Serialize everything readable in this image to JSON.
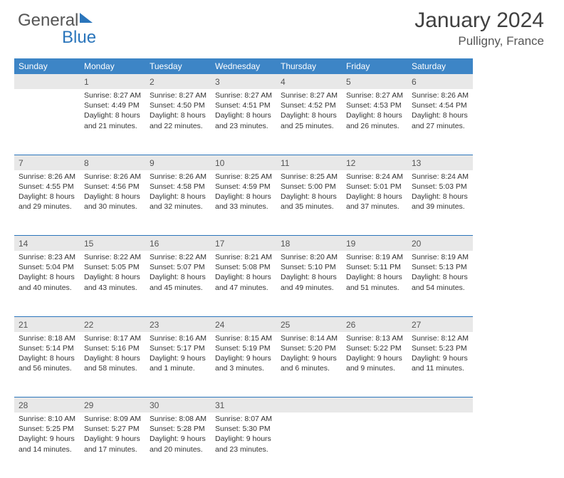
{
  "logo": {
    "part1": "General",
    "part2": "Blue"
  },
  "title": {
    "monthYear": "January 2024",
    "location": "Pulligny, France"
  },
  "colors": {
    "headerBg": "#3d85c6",
    "headerText": "#ffffff",
    "dayNumBg": "#e8e8e8",
    "rule": "#2a75bb",
    "text": "#333333"
  },
  "dayHeaders": [
    "Sunday",
    "Monday",
    "Tuesday",
    "Wednesday",
    "Thursday",
    "Friday",
    "Saturday"
  ],
  "weeks": [
    [
      null,
      {
        "n": "1",
        "sr": "Sunrise: 8:27 AM",
        "ss": "Sunset: 4:49 PM",
        "d1": "Daylight: 8 hours",
        "d2": "and 21 minutes."
      },
      {
        "n": "2",
        "sr": "Sunrise: 8:27 AM",
        "ss": "Sunset: 4:50 PM",
        "d1": "Daylight: 8 hours",
        "d2": "and 22 minutes."
      },
      {
        "n": "3",
        "sr": "Sunrise: 8:27 AM",
        "ss": "Sunset: 4:51 PM",
        "d1": "Daylight: 8 hours",
        "d2": "and 23 minutes."
      },
      {
        "n": "4",
        "sr": "Sunrise: 8:27 AM",
        "ss": "Sunset: 4:52 PM",
        "d1": "Daylight: 8 hours",
        "d2": "and 25 minutes."
      },
      {
        "n": "5",
        "sr": "Sunrise: 8:27 AM",
        "ss": "Sunset: 4:53 PM",
        "d1": "Daylight: 8 hours",
        "d2": "and 26 minutes."
      },
      {
        "n": "6",
        "sr": "Sunrise: 8:26 AM",
        "ss": "Sunset: 4:54 PM",
        "d1": "Daylight: 8 hours",
        "d2": "and 27 minutes."
      }
    ],
    [
      {
        "n": "7",
        "sr": "Sunrise: 8:26 AM",
        "ss": "Sunset: 4:55 PM",
        "d1": "Daylight: 8 hours",
        "d2": "and 29 minutes."
      },
      {
        "n": "8",
        "sr": "Sunrise: 8:26 AM",
        "ss": "Sunset: 4:56 PM",
        "d1": "Daylight: 8 hours",
        "d2": "and 30 minutes."
      },
      {
        "n": "9",
        "sr": "Sunrise: 8:26 AM",
        "ss": "Sunset: 4:58 PM",
        "d1": "Daylight: 8 hours",
        "d2": "and 32 minutes."
      },
      {
        "n": "10",
        "sr": "Sunrise: 8:25 AM",
        "ss": "Sunset: 4:59 PM",
        "d1": "Daylight: 8 hours",
        "d2": "and 33 minutes."
      },
      {
        "n": "11",
        "sr": "Sunrise: 8:25 AM",
        "ss": "Sunset: 5:00 PM",
        "d1": "Daylight: 8 hours",
        "d2": "and 35 minutes."
      },
      {
        "n": "12",
        "sr": "Sunrise: 8:24 AM",
        "ss": "Sunset: 5:01 PM",
        "d1": "Daylight: 8 hours",
        "d2": "and 37 minutes."
      },
      {
        "n": "13",
        "sr": "Sunrise: 8:24 AM",
        "ss": "Sunset: 5:03 PM",
        "d1": "Daylight: 8 hours",
        "d2": "and 39 minutes."
      }
    ],
    [
      {
        "n": "14",
        "sr": "Sunrise: 8:23 AM",
        "ss": "Sunset: 5:04 PM",
        "d1": "Daylight: 8 hours",
        "d2": "and 40 minutes."
      },
      {
        "n": "15",
        "sr": "Sunrise: 8:22 AM",
        "ss": "Sunset: 5:05 PM",
        "d1": "Daylight: 8 hours",
        "d2": "and 43 minutes."
      },
      {
        "n": "16",
        "sr": "Sunrise: 8:22 AM",
        "ss": "Sunset: 5:07 PM",
        "d1": "Daylight: 8 hours",
        "d2": "and 45 minutes."
      },
      {
        "n": "17",
        "sr": "Sunrise: 8:21 AM",
        "ss": "Sunset: 5:08 PM",
        "d1": "Daylight: 8 hours",
        "d2": "and 47 minutes."
      },
      {
        "n": "18",
        "sr": "Sunrise: 8:20 AM",
        "ss": "Sunset: 5:10 PM",
        "d1": "Daylight: 8 hours",
        "d2": "and 49 minutes."
      },
      {
        "n": "19",
        "sr": "Sunrise: 8:19 AM",
        "ss": "Sunset: 5:11 PM",
        "d1": "Daylight: 8 hours",
        "d2": "and 51 minutes."
      },
      {
        "n": "20",
        "sr": "Sunrise: 8:19 AM",
        "ss": "Sunset: 5:13 PM",
        "d1": "Daylight: 8 hours",
        "d2": "and 54 minutes."
      }
    ],
    [
      {
        "n": "21",
        "sr": "Sunrise: 8:18 AM",
        "ss": "Sunset: 5:14 PM",
        "d1": "Daylight: 8 hours",
        "d2": "and 56 minutes."
      },
      {
        "n": "22",
        "sr": "Sunrise: 8:17 AM",
        "ss": "Sunset: 5:16 PM",
        "d1": "Daylight: 8 hours",
        "d2": "and 58 minutes."
      },
      {
        "n": "23",
        "sr": "Sunrise: 8:16 AM",
        "ss": "Sunset: 5:17 PM",
        "d1": "Daylight: 9 hours",
        "d2": "and 1 minute."
      },
      {
        "n": "24",
        "sr": "Sunrise: 8:15 AM",
        "ss": "Sunset: 5:19 PM",
        "d1": "Daylight: 9 hours",
        "d2": "and 3 minutes."
      },
      {
        "n": "25",
        "sr": "Sunrise: 8:14 AM",
        "ss": "Sunset: 5:20 PM",
        "d1": "Daylight: 9 hours",
        "d2": "and 6 minutes."
      },
      {
        "n": "26",
        "sr": "Sunrise: 8:13 AM",
        "ss": "Sunset: 5:22 PM",
        "d1": "Daylight: 9 hours",
        "d2": "and 9 minutes."
      },
      {
        "n": "27",
        "sr": "Sunrise: 8:12 AM",
        "ss": "Sunset: 5:23 PM",
        "d1": "Daylight: 9 hours",
        "d2": "and 11 minutes."
      }
    ],
    [
      {
        "n": "28",
        "sr": "Sunrise: 8:10 AM",
        "ss": "Sunset: 5:25 PM",
        "d1": "Daylight: 9 hours",
        "d2": "and 14 minutes."
      },
      {
        "n": "29",
        "sr": "Sunrise: 8:09 AM",
        "ss": "Sunset: 5:27 PM",
        "d1": "Daylight: 9 hours",
        "d2": "and 17 minutes."
      },
      {
        "n": "30",
        "sr": "Sunrise: 8:08 AM",
        "ss": "Sunset: 5:28 PM",
        "d1": "Daylight: 9 hours",
        "d2": "and 20 minutes."
      },
      {
        "n": "31",
        "sr": "Sunrise: 8:07 AM",
        "ss": "Sunset: 5:30 PM",
        "d1": "Daylight: 9 hours",
        "d2": "and 23 minutes."
      },
      null,
      null,
      null
    ]
  ]
}
